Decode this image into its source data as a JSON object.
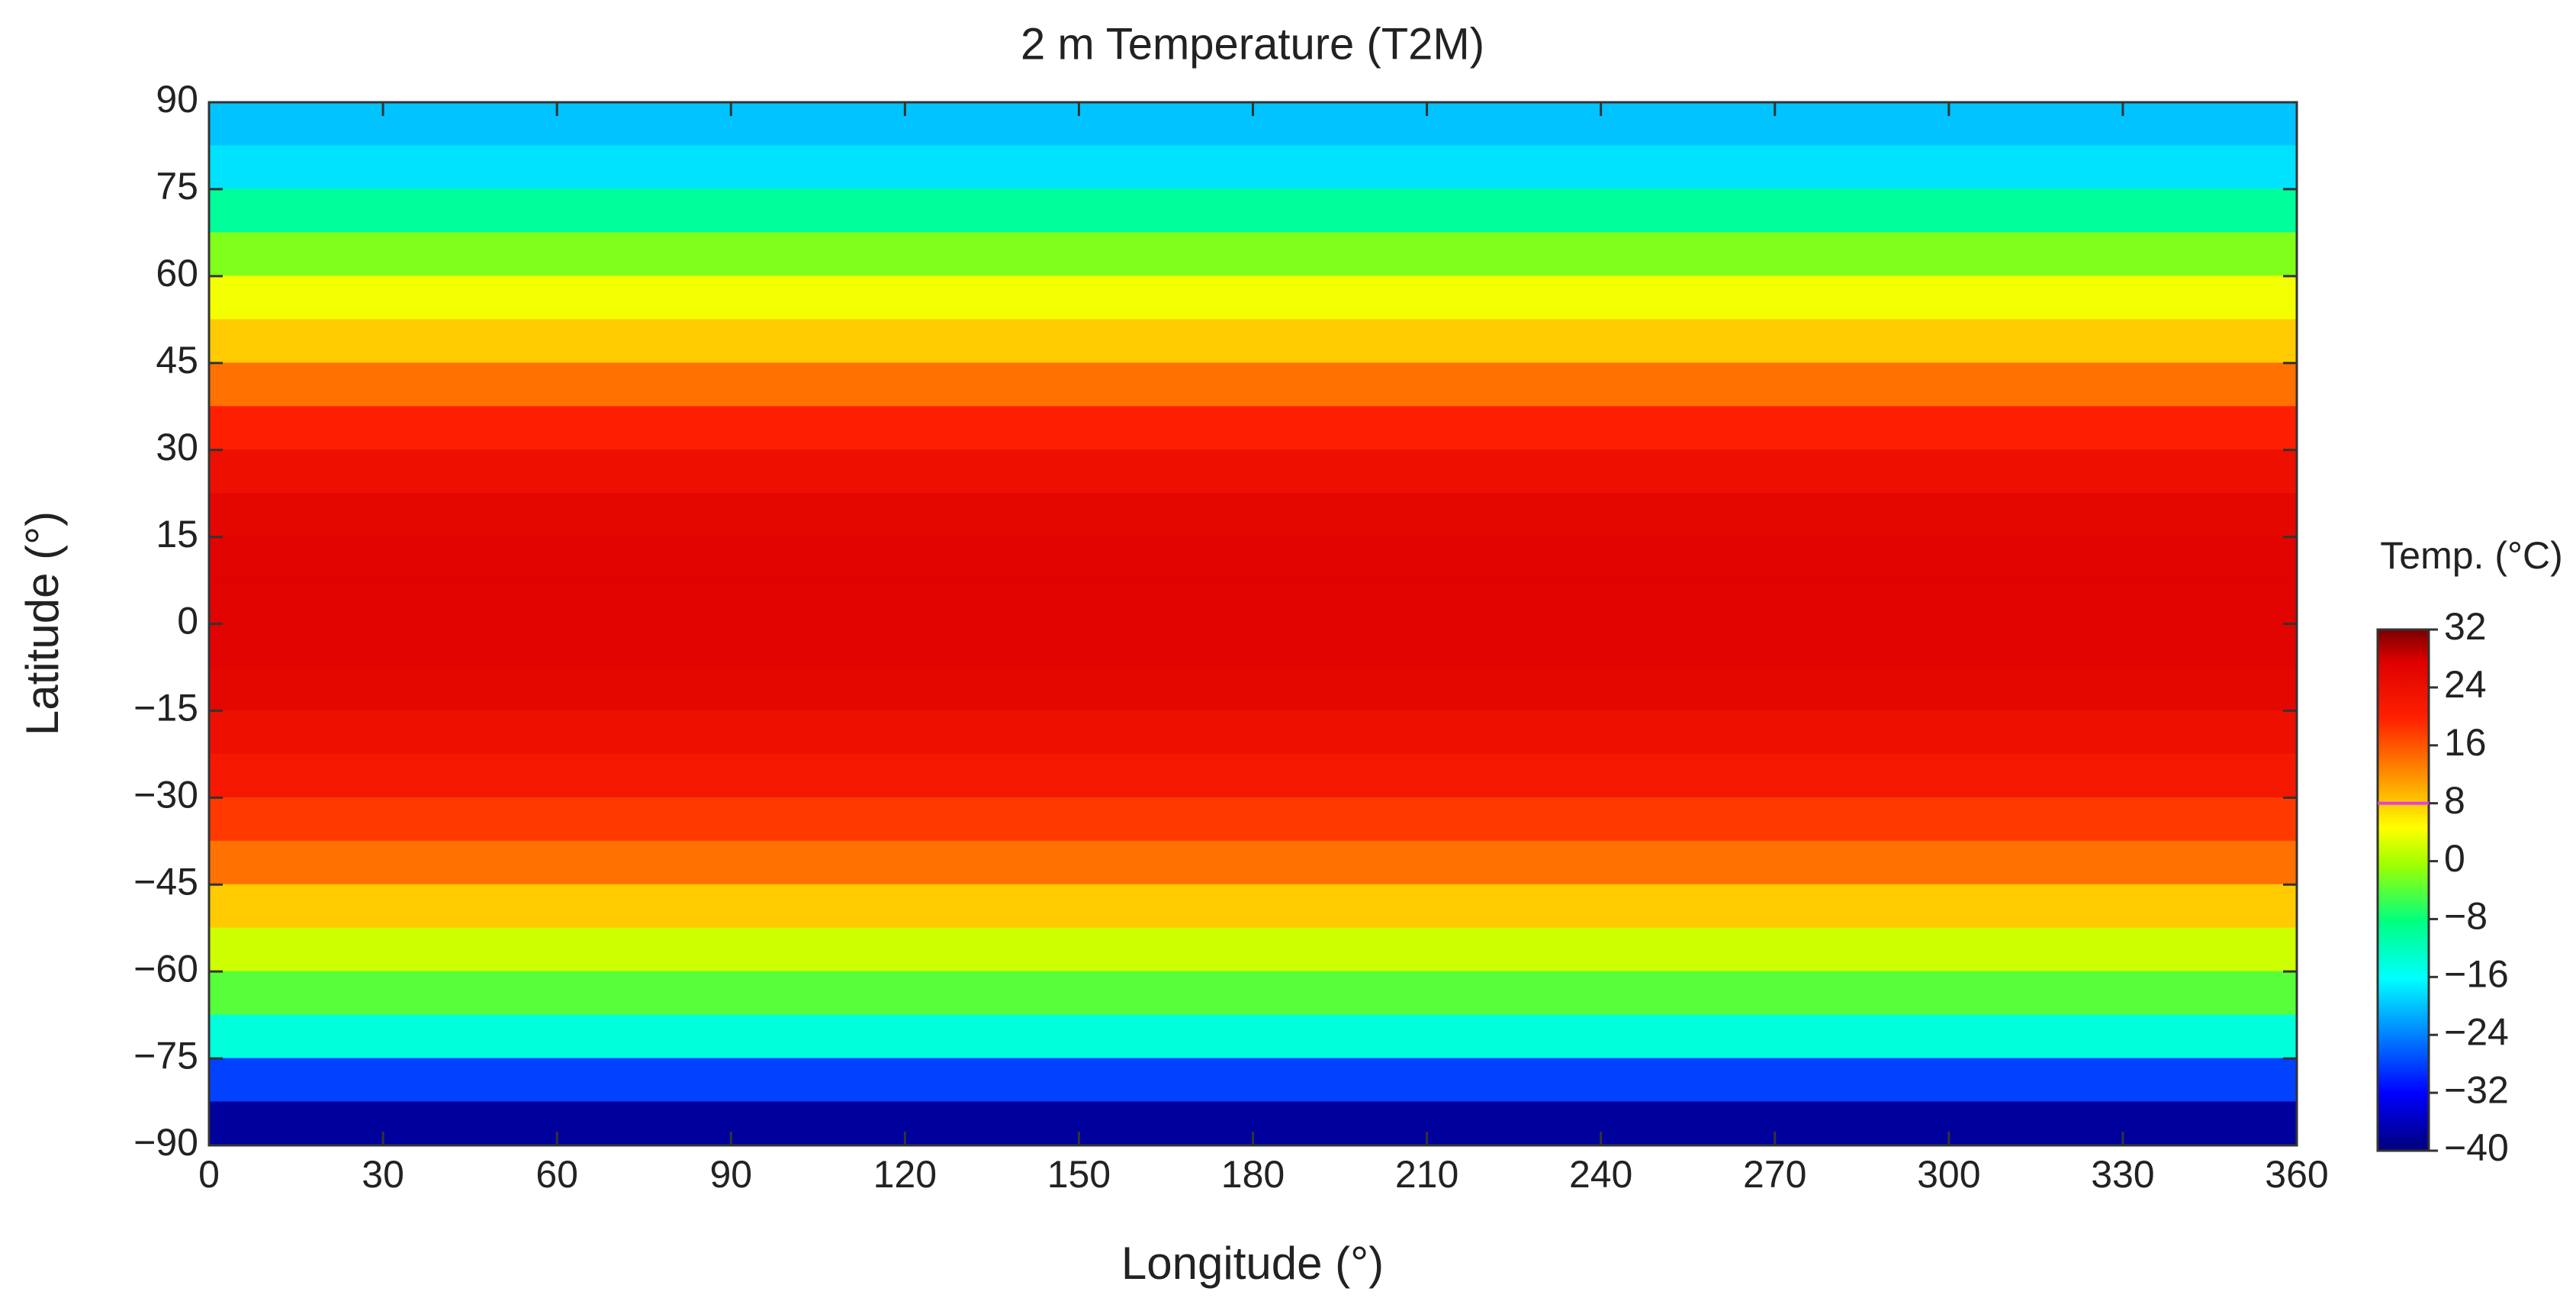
{
  "chart_data": {
    "type": "map",
    "title": "2 m Temperature (T2M)",
    "xlabel": "Longitude (°)",
    "ylabel": "Latitude (°)",
    "xlim": [
      0,
      360
    ],
    "xticks": [
      0,
      30,
      60,
      90,
      120,
      150,
      180,
      210,
      240,
      270,
      300,
      330,
      360
    ],
    "ylim": [
      -90,
      90
    ],
    "yticks": [
      {
        "value": -90,
        "label": "−90"
      },
      {
        "value": -75,
        "label": "−75"
      },
      {
        "value": -60,
        "label": "−60"
      },
      {
        "value": -45,
        "label": "−45"
      },
      {
        "value": -30,
        "label": "−30"
      },
      {
        "value": -15,
        "label": "−15"
      },
      0,
      15,
      30,
      45,
      60,
      75,
      90
    ],
    "latitudes": [
      86.25,
      78.75,
      71.25,
      63.75,
      56.25,
      48.75,
      41.25,
      33.75,
      26.25,
      18.75,
      11.25,
      3.75,
      -3.75,
      -11.25,
      -18.75,
      -26.25,
      -33.75,
      -41.25,
      -48.75,
      -56.25,
      -63.75,
      -71.25,
      -78.75,
      -86.25
    ],
    "values": [
      -20,
      -18,
      -10,
      -2,
      4,
      8,
      14,
      20,
      24,
      26,
      27,
      27,
      27,
      26,
      24,
      22,
      18,
      14,
      8,
      2,
      -4,
      -14,
      -28,
      -38
    ],
    "colormap": "jet",
    "colorbar": {
      "label": "Temp. (°C)",
      "lim": [
        -40,
        32
      ],
      "ticks": [
        {
          "value": -40,
          "label": "−40"
        },
        {
          "value": -32,
          "label": "−32"
        },
        {
          "value": -24,
          "label": "−24"
        },
        {
          "value": -16,
          "label": "−16"
        },
        {
          "value": -8,
          "label": "−8"
        },
        0,
        8,
        16,
        24,
        32
      ]
    },
    "contour": {
      "level": 8,
      "color": "#e23fe0"
    }
  }
}
